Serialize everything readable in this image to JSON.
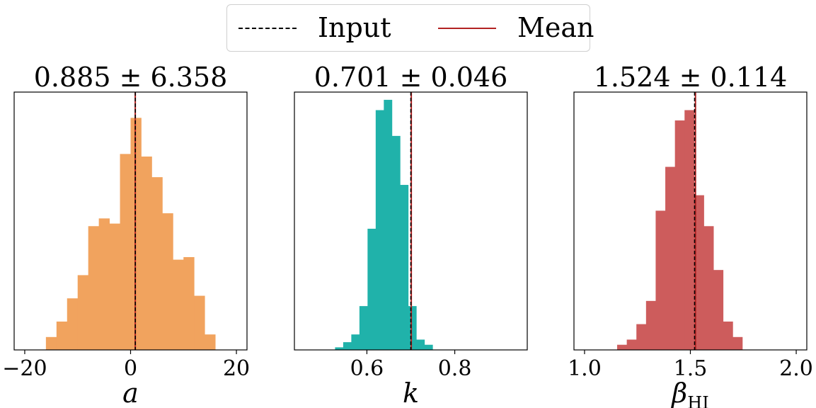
{
  "legend": {
    "input_label": "Input",
    "mean_label": "Mean",
    "input_color": "#000000",
    "mean_color": "#b22222"
  },
  "chart_data": [
    {
      "type": "bar",
      "title": "0.885 ± 6.358",
      "xlabel": "a",
      "xlabel_sub": "",
      "color": "#f1a35e",
      "xlim": [
        -22,
        22
      ],
      "ylim": [
        0,
        1.0
      ],
      "xticks": [
        -20,
        0,
        20
      ],
      "xtick_labels": [
        "−20",
        "0",
        "20"
      ],
      "bin_width": 2.0,
      "bin_start": -16.0,
      "values": [
        0.05,
        0.11,
        0.2,
        0.29,
        0.48,
        0.51,
        0.49,
        0.76,
        0.9,
        0.75,
        0.67,
        0.53,
        0.35,
        0.36,
        0.21,
        0.06
      ],
      "input": 0.9,
      "mean": 0.885
    },
    {
      "type": "bar",
      "title": "0.701 ± 0.046",
      "xlabel": "k",
      "xlabel_sub": "",
      "color": "#20b2aa",
      "xlim": [
        0.435,
        0.965
      ],
      "ylim": [
        0,
        1.0
      ],
      "xticks": [
        0.6,
        0.8
      ],
      "xtick_labels": [
        "0.6",
        "0.8"
      ],
      "bin_width": 0.0185,
      "bin_start": 0.5275,
      "values": [
        0.01,
        0.03,
        0.06,
        0.17,
        0.47,
        0.93,
        0.97,
        0.83,
        0.64,
        0.17,
        0.04,
        0.02
      ],
      "input": 0.7,
      "mean": 0.701
    },
    {
      "type": "bar",
      "title": "1.524 ± 0.114",
      "xlabel": "β",
      "xlabel_sub": "HI",
      "color": "#cd5c5c",
      "xlim": [
        0.95,
        2.05
      ],
      "ylim": [
        0,
        1.0
      ],
      "xticks": [
        1.0,
        1.5,
        2.0
      ],
      "xtick_labels": [
        "1.0",
        "1.5",
        "2.0"
      ],
      "bin_width": 0.0455,
      "bin_start": 1.154,
      "values": [
        0.02,
        0.04,
        0.1,
        0.19,
        0.54,
        0.71,
        0.89,
        0.93,
        0.6,
        0.48,
        0.31,
        0.11,
        0.05
      ],
      "input": 1.52,
      "mean": 1.524
    }
  ]
}
